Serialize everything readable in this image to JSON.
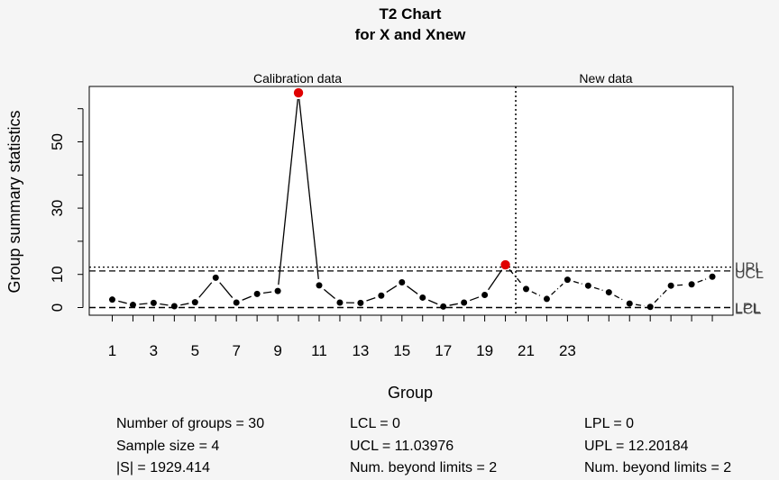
{
  "chart_data": {
    "type": "line",
    "title": "T2 Chart",
    "subtitle": "for X and Xnew",
    "xlabel": "Group",
    "ylabel": "Group summary statistics",
    "section_labels": {
      "calibration": "Calibration data",
      "new": "New data"
    },
    "x": [
      1,
      2,
      3,
      4,
      5,
      6,
      7,
      8,
      9,
      10,
      11,
      12,
      13,
      14,
      15,
      16,
      17,
      18,
      19,
      20,
      21,
      22,
      23,
      24,
      25,
      26,
      27,
      28,
      29,
      30
    ],
    "values": [
      2.4,
      0.8,
      1.4,
      0.4,
      1.6,
      9.0,
      1.5,
      4.1,
      5.0,
      64.8,
      6.7,
      1.5,
      1.4,
      3.6,
      7.6,
      3.0,
      0.3,
      1.5,
      3.8,
      12.9,
      5.6,
      2.6,
      8.4,
      6.6,
      4.6,
      1.2,
      0.2,
      6.6,
      7.0,
      9.3
    ],
    "out_of_control_groups": [
      10,
      20
    ],
    "xtick_labels": [
      "1",
      "3",
      "5",
      "7",
      "9",
      "11",
      "13",
      "15",
      "17",
      "19",
      "21",
      "23"
    ],
    "yticks": [
      0,
      10,
      30,
      50
    ],
    "ylim": [
      0,
      66
    ],
    "limits": {
      "UCL": 11.03976,
      "UPL": 12.20184,
      "LCL": 0,
      "LPL": 0
    },
    "limit_labels": {
      "ucl": "UCL",
      "upl": "UPL",
      "lcl": "LCL",
      "lpl": "LPL"
    },
    "calibration_groups": 20,
    "colors": {
      "point": "#000000",
      "violation": "#e00000",
      "background": "#f5f5f5"
    }
  },
  "stats": {
    "col1": [
      "Number of groups = 30",
      "Sample size = 4",
      "|S| = 1929.414"
    ],
    "col2": [
      "LCL = 0",
      "UCL = 11.03976",
      "Num. beyond limits = 2"
    ],
    "col3": [
      "LPL = 0",
      "UPL = 12.20184",
      "Num. beyond limits = 2"
    ]
  }
}
